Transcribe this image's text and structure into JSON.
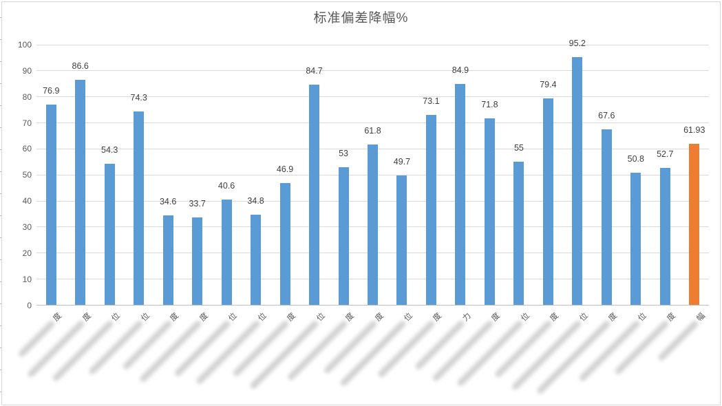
{
  "title": "标准偏差降幅%",
  "colors": {
    "bar_default": "#5B9BD5",
    "bar_highlight": "#ED7D31",
    "gridline": "#D9D9D9",
    "axis_line": "#BFBFBF",
    "tick_label": "#595959",
    "value_label": "#404040",
    "chart_border": "#D7D7D7"
  },
  "chart_data": {
    "type": "bar",
    "title": "标准偏差降幅%",
    "xlabel": "",
    "ylabel": "",
    "ylim": [
      0,
      100
    ],
    "yticks": [
      0,
      10,
      20,
      30,
      40,
      50,
      60,
      70,
      80,
      90,
      100
    ],
    "grid": "horizontal",
    "legend": "none",
    "values": [
      76.9,
      86.6,
      54.3,
      74.3,
      34.6,
      33.7,
      40.6,
      34.8,
      46.9,
      84.7,
      53,
      61.8,
      49.7,
      73.1,
      84.9,
      71.8,
      55,
      79.4,
      95.2,
      67.6,
      50.8,
      52.7,
      61.93
    ],
    "value_labels": [
      "76.9",
      "86.6",
      "54.3",
      "74.3",
      "34.6",
      "33.7",
      "40.6",
      "34.8",
      "46.9",
      "84.7",
      "53",
      "61.8",
      "49.7",
      "73.1",
      "84.9",
      "71.8",
      "55",
      "79.4",
      "95.2",
      "67.6",
      "50.8",
      "52.7",
      "61.93"
    ],
    "highlight_last_bar": true,
    "categories": [
      {
        "visible_suffix": "度",
        "redacted": true,
        "redact_len": 70
      },
      {
        "visible_suffix": "度",
        "redacted": true,
        "redact_len": 112
      },
      {
        "visible_suffix": "位",
        "redacted": true,
        "redact_len": 120
      },
      {
        "visible_suffix": "位",
        "redacted": true,
        "redact_len": 106
      },
      {
        "visible_suffix": "度",
        "redacted": true,
        "redact_len": 96
      },
      {
        "visible_suffix": "度",
        "redacted": true,
        "redact_len": 122
      },
      {
        "visible_suffix": "位",
        "redacted": true,
        "redact_len": 110
      },
      {
        "visible_suffix": "位",
        "redacted": true,
        "redact_len": 126
      },
      {
        "visible_suffix": "度",
        "redacted": true,
        "redact_len": 110
      },
      {
        "visible_suffix": "位",
        "redacted": true,
        "redact_len": 136
      },
      {
        "visible_suffix": "度",
        "redacted": true,
        "redact_len": 118
      },
      {
        "visible_suffix": "度",
        "redacted": true,
        "redact_len": 104
      },
      {
        "visible_suffix": "位",
        "redacted": true,
        "redact_len": 130
      },
      {
        "visible_suffix": "度",
        "redacted": true,
        "redact_len": 112
      },
      {
        "visible_suffix": "力",
        "redacted": true,
        "redact_len": 96
      },
      {
        "visible_suffix": "度",
        "redacted": true,
        "redact_len": 120
      },
      {
        "visible_suffix": "位",
        "redacted": true,
        "redact_len": 130
      },
      {
        "visible_suffix": "度",
        "redacted": true,
        "redact_len": 112
      },
      {
        "visible_suffix": "位",
        "redacted": true,
        "redact_len": 138
      },
      {
        "visible_suffix": "度",
        "redacted": true,
        "redact_len": 146
      },
      {
        "visible_suffix": "位",
        "redacted": true,
        "redact_len": 120
      },
      {
        "visible_suffix": "度",
        "redacted": true,
        "redact_len": 106
      },
      {
        "visible_suffix": "幅",
        "redacted": true,
        "redact_len": 78
      }
    ]
  }
}
